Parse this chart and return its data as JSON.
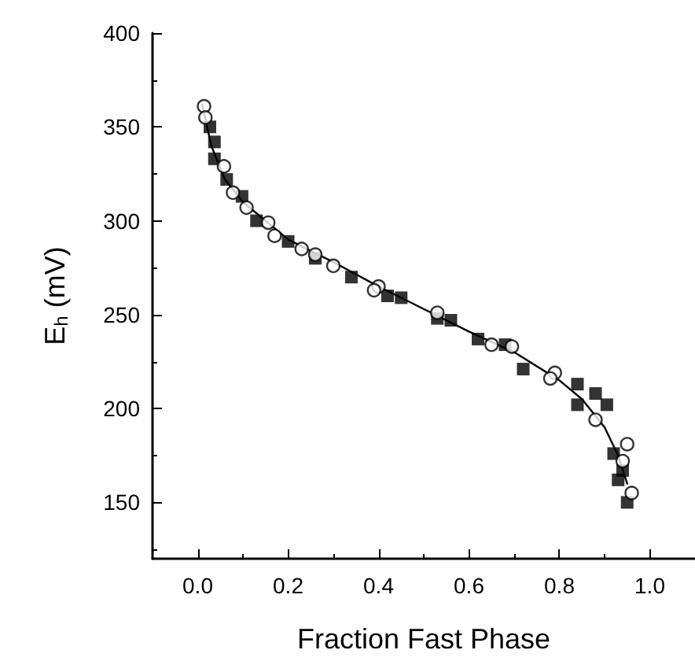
{
  "chart_data": {
    "type": "scatter",
    "xlabel": "Fraction Fast Phase",
    "ylabel": "E$_{h}$ (mV)",
    "xlim": [
      -0.1,
      1.1
    ],
    "xticks": [
      {
        "value": 0,
        "label": "0.0"
      },
      0.2,
      0.4,
      0.6,
      0.8,
      {
        "value": 1,
        "label": "1.0"
      }
    ],
    "ylim": [
      120,
      400
    ],
    "yticks": [
      150,
      200,
      250,
      300,
      350,
      400
    ],
    "grid": false,
    "series": [
      {
        "type": "scatter",
        "marker": "square",
        "color": "#000000",
        "x": [
          0.027,
          0.037,
          0.037,
          0.064,
          0.098,
          0.13,
          0.2,
          0.26,
          0.34,
          0.42,
          0.45,
          0.53,
          0.56,
          0.62,
          0.68,
          0.72,
          0.84,
          0.88,
          0.84,
          0.905,
          0.92,
          0.94,
          0.93,
          0.95
        ],
        "values": [
          350,
          342,
          333,
          322,
          313,
          300,
          289,
          280,
          270,
          260,
          259,
          248,
          247,
          237,
          234,
          221,
          213,
          208,
          202,
          202,
          176,
          167,
          162,
          150
        ]
      },
      {
        "type": "scatter",
        "marker": "circle",
        "color": "#000000",
        "x": [
          0.014,
          0.017,
          0.058,
          0.078,
          0.108,
          0.156,
          0.17,
          0.23,
          0.26,
          0.3,
          0.4,
          0.39,
          0.53,
          0.65,
          0.695,
          0.79,
          0.78,
          0.88,
          0.95,
          0.94,
          0.96
        ],
        "values": [
          361,
          355,
          329,
          315,
          307,
          299,
          292,
          285,
          282,
          276,
          265,
          263,
          251,
          234,
          233,
          219,
          216,
          194,
          181,
          172,
          155
        ]
      },
      {
        "type": "line",
        "marker": "none",
        "color": "#000000",
        "x": [
          0.01,
          0.03,
          0.06,
          0.1,
          0.2,
          0.3,
          0.4,
          0.5,
          0.6,
          0.7,
          0.8,
          0.85,
          0.9,
          0.93,
          0.95
        ],
        "values": [
          362,
          340,
          322,
          310,
          290,
          278,
          265,
          253,
          241,
          230,
          215,
          205,
          190,
          175,
          160
        ]
      }
    ]
  }
}
